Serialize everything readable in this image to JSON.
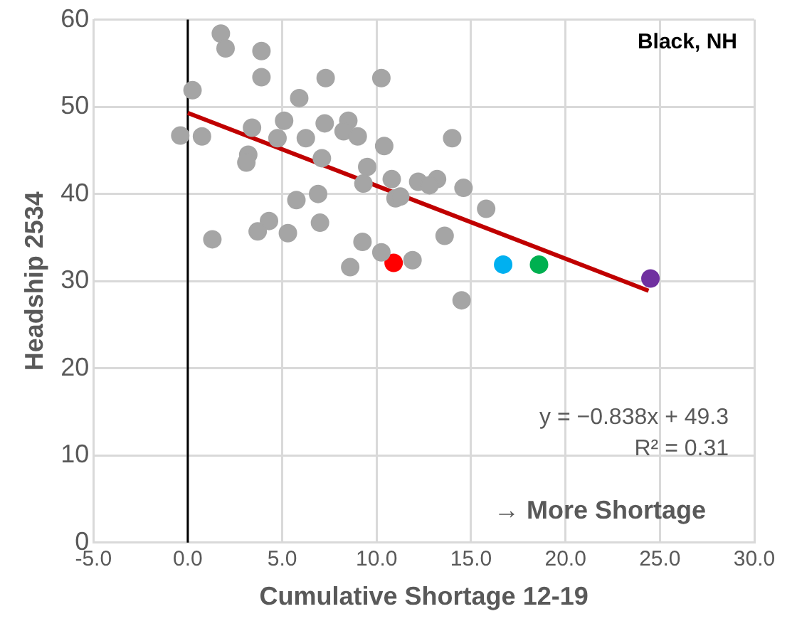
{
  "chart_data": {
    "type": "scatter",
    "xlabel": "Cumulative Shortage 12-19",
    "ylabel": "Headship 2534",
    "annotations": [
      "Black, NH",
      "y = −0.838x + 49.3",
      "R² = 0.31",
      "→ More Shortage"
    ],
    "series": [
      {
        "color": "#a5a5a5",
        "x": [
          1.75,
          2.0,
          3.9,
          3.9,
          0.25,
          7.3,
          5.9,
          -0.4,
          0.75,
          3.4,
          5.1,
          4.75,
          6.25,
          7.25,
          3.2,
          3.1,
          7.1,
          5.75,
          6.9,
          7.0,
          4.3,
          3.7,
          5.3,
          1.3,
          10.25,
          8.5,
          8.25,
          9.0,
          10.4,
          14.0,
          9.5,
          9.3,
          10.8,
          12.2,
          13.2,
          12.8,
          14.6,
          11.0,
          11.25,
          15.8,
          13.6,
          9.25,
          10.25,
          11.9,
          8.6,
          14.5
        ],
        "values": [
          58.4,
          56.7,
          56.4,
          53.4,
          51.9,
          53.3,
          51.0,
          46.7,
          46.6,
          47.6,
          48.4,
          46.4,
          46.4,
          48.1,
          44.5,
          43.6,
          44.1,
          39.3,
          40.0,
          36.7,
          36.9,
          35.7,
          35.5,
          34.8,
          53.3,
          48.4,
          47.2,
          46.6,
          45.5,
          46.4,
          43.1,
          41.2,
          41.7,
          41.4,
          41.7,
          41.0,
          40.7,
          39.5,
          39.7,
          38.3,
          35.2,
          34.5,
          33.3,
          32.4,
          31.6,
          27.8
        ]
      },
      {
        "color": "#ff0000",
        "x": [
          10.9
        ],
        "values": [
          32.1
        ]
      },
      {
        "color": "#00b0f0",
        "x": [
          16.7
        ],
        "values": [
          31.9
        ]
      },
      {
        "color": "#00b050",
        "x": [
          18.6
        ],
        "values": [
          31.9
        ]
      },
      {
        "color": "#7030a0",
        "x": [
          24.5
        ],
        "values": [
          30.3
        ]
      },
      {
        "type": "line",
        "marker": "none",
        "color": "#c00000",
        "x": [
          0,
          24.4
        ],
        "values": [
          49.3,
          28.9
        ]
      }
    ],
    "xlim": [
      -5,
      30
    ],
    "xticks": [
      {
        "value": -5,
        "label": "-5.0"
      },
      {
        "value": 0,
        "label": "0.0"
      },
      {
        "value": 5,
        "label": "5.0"
      },
      {
        "value": 10,
        "label": "10.0"
      },
      {
        "value": 15,
        "label": "15.0"
      },
      {
        "value": 20,
        "label": "20.0"
      },
      {
        "value": 25,
        "label": "25.0"
      },
      {
        "value": 30,
        "label": "30.0"
      }
    ],
    "ylim": [
      0,
      60
    ],
    "yticks": [
      0,
      10,
      20,
      30,
      40,
      50,
      60
    ],
    "ref_lines": [
      {
        "axis": "x",
        "value": 0,
        "color": "#000000"
      }
    ],
    "grid": true,
    "legend": false,
    "marker": "circle"
  }
}
